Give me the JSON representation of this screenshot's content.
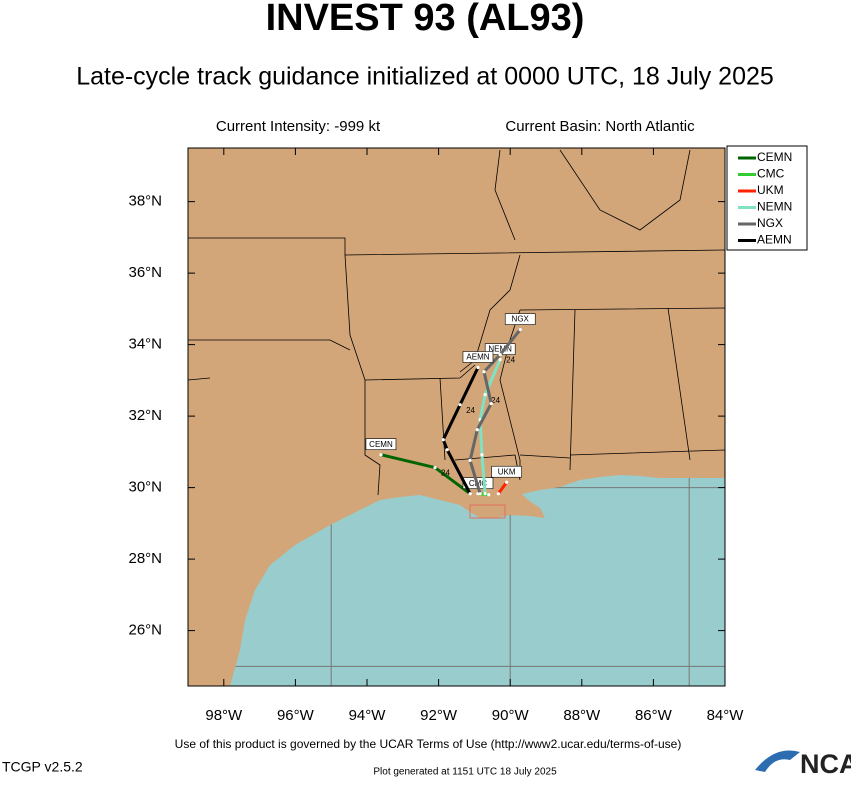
{
  "header": {
    "title": "INVEST 93 (AL93)",
    "subtitle": "Late-cycle track guidance initialized at 0000 UTC, 18 July 2025",
    "intensity": "Current Intensity: -999 kt",
    "basin": "Current Basin: North Atlantic"
  },
  "chart_data": {
    "type": "track",
    "xlim": [
      -99,
      -84
    ],
    "ylim": [
      24.45,
      39.5
    ],
    "xticks": [
      {
        "value": -98,
        "label": "98°W"
      },
      {
        "value": -96,
        "label": "96°W"
      },
      {
        "value": -94,
        "label": "94°W"
      },
      {
        "value": -92,
        "label": "92°W"
      },
      {
        "value": -90,
        "label": "90°W"
      },
      {
        "value": -88,
        "label": "88°W"
      },
      {
        "value": -86,
        "label": "86°W"
      },
      {
        "value": -84,
        "label": "84°W"
      }
    ],
    "yticks": [
      {
        "value": 26,
        "label": "26°N"
      },
      {
        "value": 28,
        "label": "28°N"
      },
      {
        "value": 30,
        "label": "30°N"
      },
      {
        "value": 32,
        "label": "32°N"
      },
      {
        "value": 34,
        "label": "34°N"
      },
      {
        "value": 36,
        "label": "36°N"
      },
      {
        "value": 38,
        "label": "38°N"
      }
    ],
    "grid_lon": [
      -95,
      -90,
      -85
    ],
    "grid_lat": [
      25,
      30
    ],
    "series": [
      {
        "name": "CEMN",
        "color": "#006400",
        "x": [
          -91.12,
          -92.1,
          -93.61
        ],
        "values": [
          29.83,
          30.56,
          30.92
        ],
        "hour_label": "24"
      },
      {
        "name": "CMC",
        "color": "#33cc33",
        "x": [
          -90.6,
          -90.9
        ],
        "values": [
          29.8,
          29.83
        ]
      },
      {
        "name": "UKM",
        "color": "#ff2200",
        "x": [
          -90.33,
          -90.1
        ],
        "values": [
          29.83,
          30.15
        ]
      },
      {
        "name": "NEMN",
        "color": "#7fe3c3",
        "x": [
          -90.7,
          -90.79,
          -90.84,
          -90.7,
          -90.28
        ],
        "values": [
          29.83,
          30.92,
          31.9,
          32.6,
          33.58
        ],
        "hour_label": "24"
      },
      {
        "name": "NGX",
        "color": "#666666",
        "x": [
          -90.84,
          -91.12,
          -90.92,
          -90.53,
          -90.73,
          -90.28,
          -89.72
        ],
        "values": [
          29.83,
          30.76,
          31.62,
          32.35,
          33.24,
          33.72,
          34.42
        ],
        "hour_label": "24"
      },
      {
        "name": "AEMN",
        "color": "#000000",
        "x": [
          -91.12,
          -91.76,
          -91.87,
          -91.4,
          -90.9
        ],
        "values": [
          29.83,
          31.06,
          31.34,
          32.32,
          33.36
        ],
        "hour_label": "24"
      }
    ]
  },
  "footer": {
    "terms": "Use of this product is governed by the UCAR Terms of Use (http://www2.ucar.edu/terms-of-use)",
    "version": "TCGP v2.5.2",
    "generated": "Plot generated at 1151 UTC   18 July 2025",
    "logo": "NCAR"
  }
}
